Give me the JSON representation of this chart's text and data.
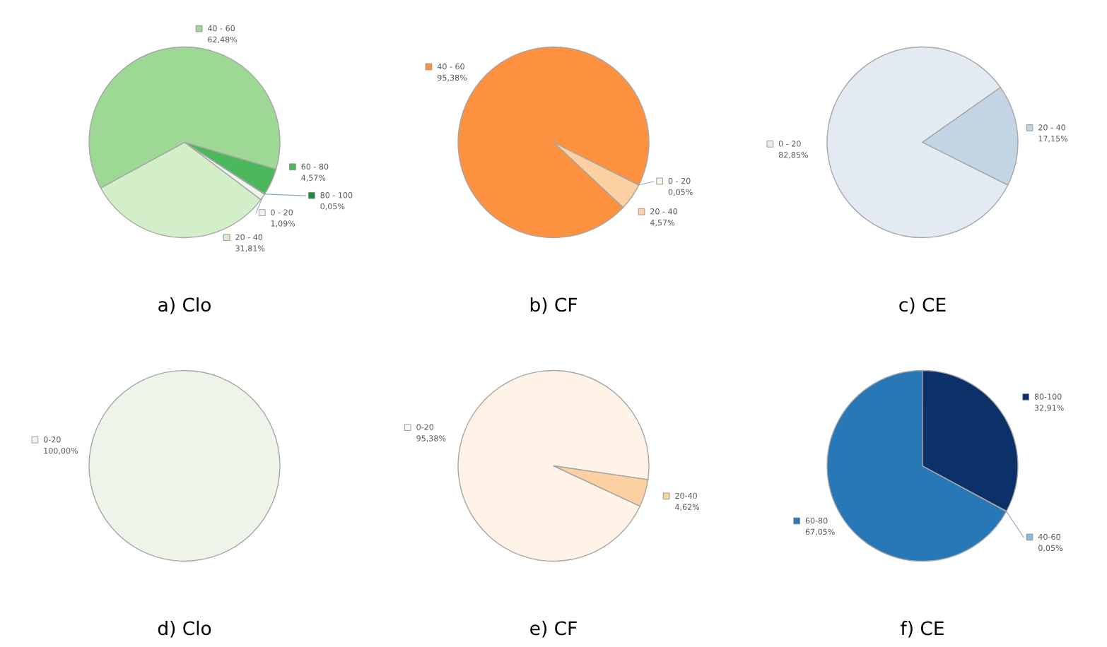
{
  "chart_data": [
    {
      "type": "pie",
      "title": "a) Clo",
      "categories": [
        "0 - 20",
        "20 - 40",
        "40 - 60",
        "60 - 80",
        "80 - 100"
      ],
      "values": [
        1.09,
        31.81,
        62.48,
        4.57,
        0.05
      ],
      "colors": [
        "#eef5ea",
        "#d3efc9",
        "#9dd895",
        "#4cb85c",
        "#1e8a3e"
      ],
      "value_labels": [
        "1,09%",
        "31,81%",
        "62,48%",
        "4,57%",
        "0,05%"
      ],
      "legend": "right"
    },
    {
      "type": "pie",
      "title": "b) CF",
      "categories": [
        "0 - 20",
        "20 - 40",
        "40 - 60"
      ],
      "values": [
        0.05,
        4.57,
        95.38
      ],
      "colors": [
        "#fff3e6",
        "#fdd0a2",
        "#fd9140"
      ],
      "value_labels": [
        "0,05%",
        "4,57%",
        "95,38%"
      ],
      "legend": "right"
    },
    {
      "type": "pie",
      "title": "c) CE",
      "categories": [
        "0 - 20",
        "20 - 40"
      ],
      "values": [
        82.85,
        17.15
      ],
      "colors": [
        "#e3eaf2",
        "#c3d4e5"
      ],
      "value_labels": [
        "82,85%",
        "17,15%"
      ],
      "legend": "right"
    },
    {
      "type": "pie",
      "title": "d) Clo",
      "categories": [
        "0-20"
      ],
      "values": [
        100
      ],
      "colors": [
        "#eef4ea"
      ],
      "value_labels": [
        "100,00%"
      ],
      "legend": "left"
    },
    {
      "type": "pie",
      "title": "e) CF",
      "categories": [
        "0-20",
        "20-40"
      ],
      "values": [
        95.38,
        4.62
      ],
      "colors": [
        "#fff3e8",
        "#fdd0a2"
      ],
      "value_labels": [
        "95,38%",
        "4,62%"
      ],
      "legend": "right"
    },
    {
      "type": "pie",
      "title": "f) CE",
      "categories": [
        "40-60",
        "60-80",
        "80-100"
      ],
      "values": [
        0.05,
        67.05,
        32.91
      ],
      "colors": [
        "#8fb8db",
        "#2878b8",
        "#0b3168"
      ],
      "value_labels": [
        "0,05%",
        "67,05%",
        "32,91%"
      ],
      "legend": "right"
    }
  ]
}
